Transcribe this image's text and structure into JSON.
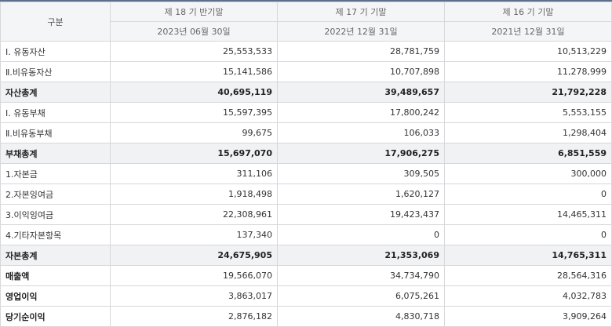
{
  "table": {
    "header_label": "구분",
    "periods": [
      {
        "name": "제 18 기 반기말",
        "date": "2023년 06월 30일"
      },
      {
        "name": "제 17 기 기말",
        "date": "2022년 12월 31일"
      },
      {
        "name": "제 16 기 기말",
        "date": "2021년 12월 31일"
      }
    ],
    "rows": [
      {
        "label": "Ⅰ. 유동자산",
        "values": [
          "25,553,533",
          "28,781,759",
          "10,513,229"
        ],
        "style": "normal"
      },
      {
        "label": "Ⅱ.비유동자산",
        "values": [
          "15,141,586",
          "10,707,898",
          "11,278,999"
        ],
        "style": "normal"
      },
      {
        "label": "자산총계",
        "values": [
          "40,695,119",
          "39,489,657",
          "21,792,228"
        ],
        "style": "total"
      },
      {
        "label": "Ⅰ. 유동부채",
        "values": [
          "15,597,395",
          "17,800,242",
          "5,553,155"
        ],
        "style": "normal"
      },
      {
        "label": "Ⅱ.비유동부채",
        "values": [
          "99,675",
          "106,033",
          "1,298,404"
        ],
        "style": "normal"
      },
      {
        "label": "부채총계",
        "values": [
          "15,697,070",
          "17,906,275",
          "6,851,559"
        ],
        "style": "total"
      },
      {
        "label": "1.자본금",
        "values": [
          "311,106",
          "309,505",
          "300,000"
        ],
        "style": "normal"
      },
      {
        "label": "2.자본잉여금",
        "values": [
          "1,918,498",
          "1,620,127",
          "0"
        ],
        "style": "normal"
      },
      {
        "label": "3.이익잉여금",
        "values": [
          "22,308,961",
          "19,423,437",
          "14,465,311"
        ],
        "style": "normal"
      },
      {
        "label": "4.기타자본항목",
        "values": [
          "137,340",
          "0",
          "0"
        ],
        "style": "normal"
      },
      {
        "label": "자본총계",
        "values": [
          "24,675,905",
          "21,353,069",
          "14,765,311"
        ],
        "style": "total"
      },
      {
        "label": "매출액",
        "values": [
          "19,566,070",
          "34,734,790",
          "28,564,316"
        ],
        "style": "bold"
      },
      {
        "label": "영업이익",
        "values": [
          "3,863,017",
          "6,075,261",
          "4,032,783"
        ],
        "style": "bold"
      },
      {
        "label": "당기순이익",
        "values": [
          "2,876,182",
          "4,830,718",
          "3,909,264"
        ],
        "style": "bold"
      }
    ]
  },
  "colors": {
    "top_rule": "#5b6f92",
    "header_bg": "#f4f5f7",
    "total_row_bg": "#f1f2f4",
    "border": "#d5d8dd"
  }
}
